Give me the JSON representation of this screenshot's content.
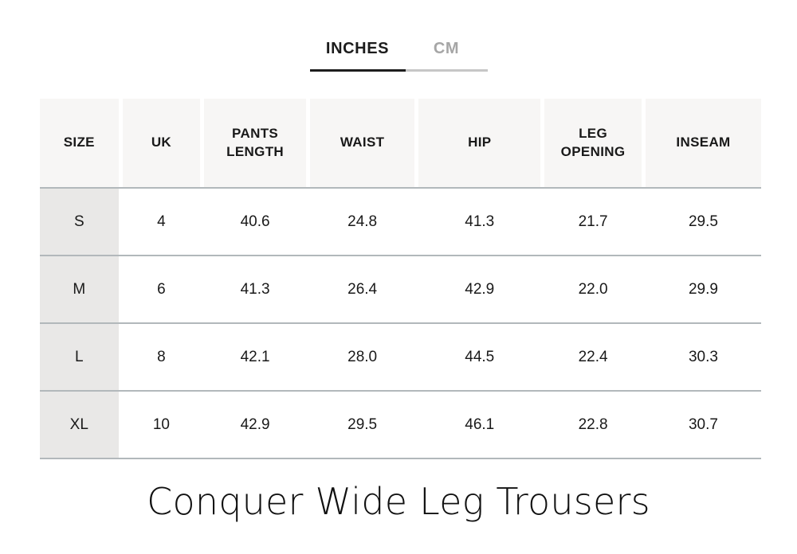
{
  "tabs": {
    "inches_label": "INCHES",
    "cm_label": "CM",
    "active": "INCHES"
  },
  "table": {
    "columns": [
      "SIZE",
      "UK",
      "PANTS LENGTH",
      "WAIST",
      "HIP",
      "LEG OPENING",
      "INSEAM"
    ],
    "rows": [
      [
        "S",
        "4",
        "40.6",
        "24.8",
        "41.3",
        "21.7",
        "29.5"
      ],
      [
        "M",
        "6",
        "41.3",
        "26.4",
        "42.9",
        "22.0",
        "29.9"
      ],
      [
        "L",
        "8",
        "42.1",
        "28.0",
        "44.5",
        "22.4",
        "30.3"
      ],
      [
        "XL",
        "10",
        "42.9",
        "29.5",
        "46.1",
        "22.8",
        "30.7"
      ]
    ]
  },
  "title": "Conquer Wide Leg Trousers",
  "colors": {
    "header_cell_bg": "#f7f6f5",
    "size_column_bg": "#e9e8e7",
    "row_separator": "#b2b8bb",
    "active_tab_text": "#1c1c1c",
    "active_tab_underline": "#1d1d1d",
    "inactive_tab_text": "#a6a6a6",
    "inactive_tab_underline": "#c6c6c6"
  }
}
